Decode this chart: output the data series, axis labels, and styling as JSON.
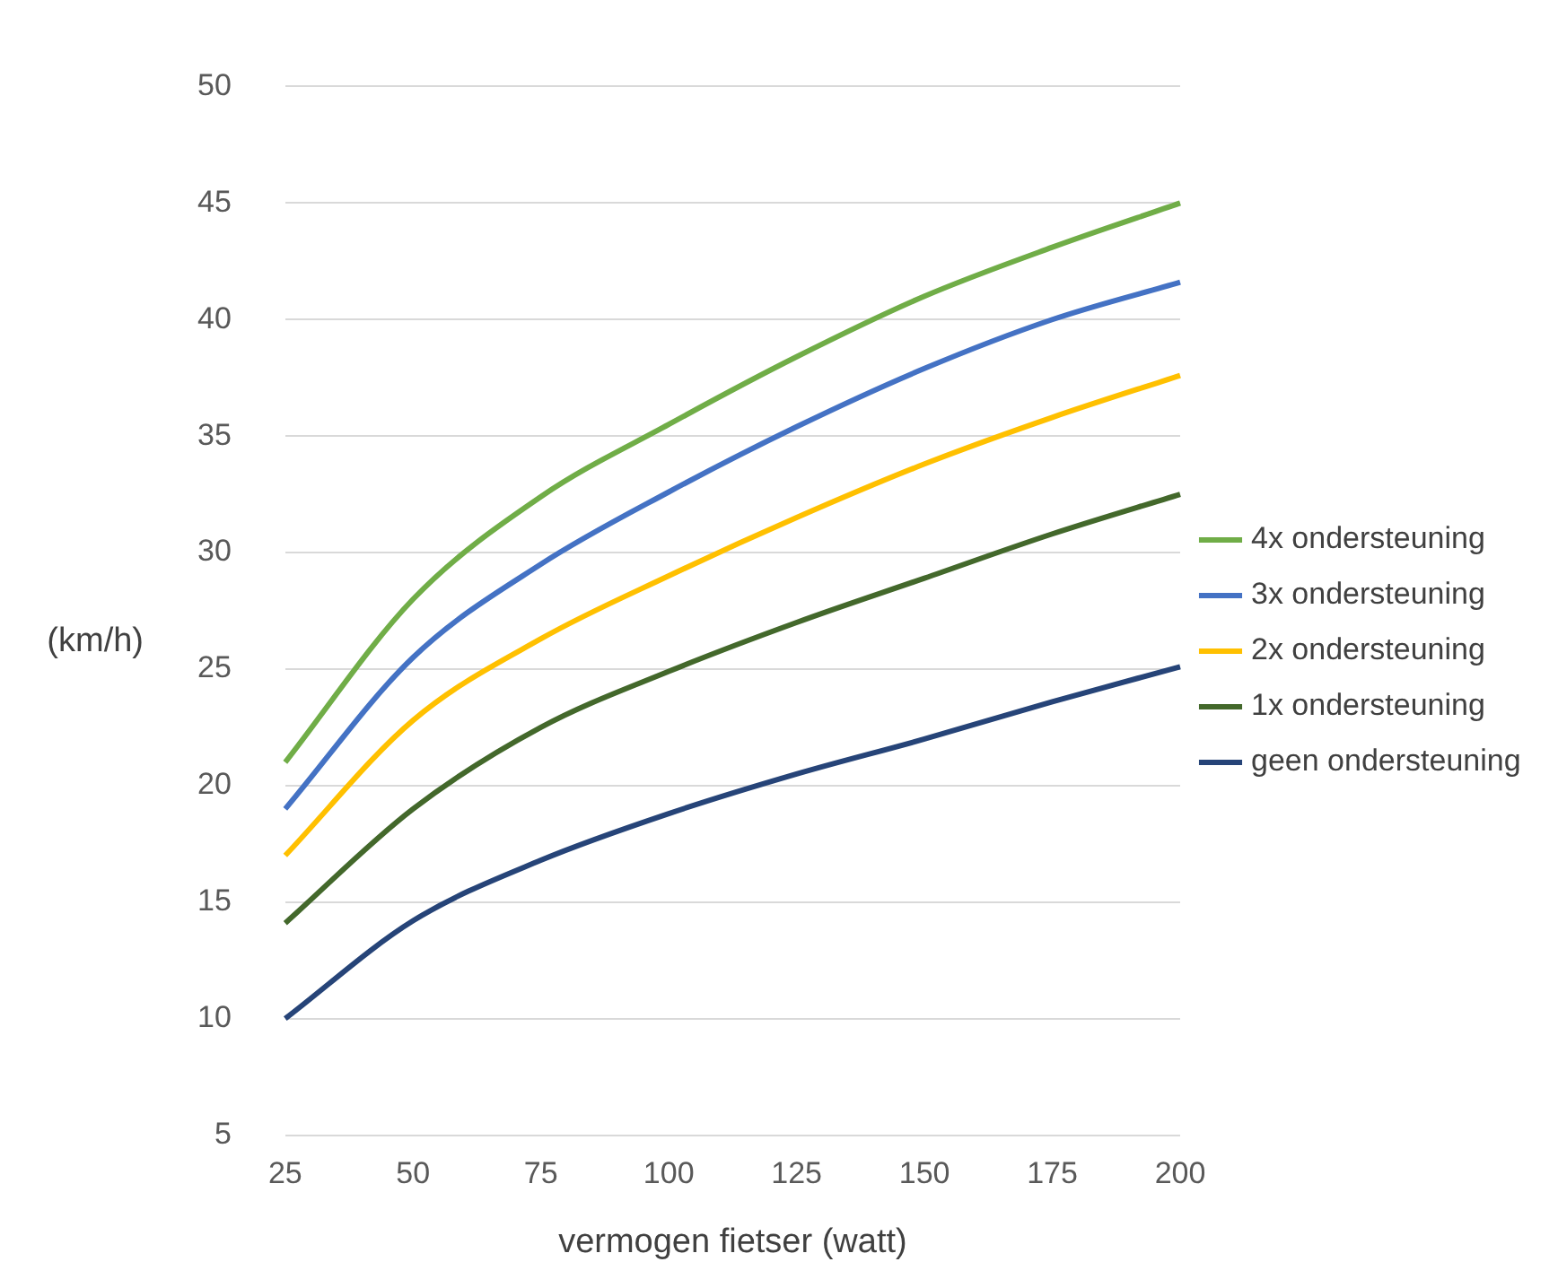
{
  "chart_data": {
    "type": "line",
    "xlabel": "vermogen fietser (watt)",
    "ylabel": "(km/h)",
    "categories": [
      "25",
      "50",
      "75",
      "100",
      "125",
      "150",
      "175",
      "200"
    ],
    "series": [
      {
        "name": "4x ondersteuning",
        "color": "#70ad47",
        "values": [
          21,
          28,
          32.4,
          35.5,
          38.4,
          41,
          43.1,
          45
        ]
      },
      {
        "name": "3x ondersteuning",
        "color": "#4472c4",
        "values": [
          19,
          25.5,
          29.5,
          32.6,
          35.4,
          37.9,
          40,
          41.6
        ]
      },
      {
        "name": "2x ondersteuning",
        "color": "#ffc000",
        "values": [
          17,
          22.8,
          26.3,
          29,
          31.5,
          33.8,
          35.8,
          37.6
        ]
      },
      {
        "name": "1x ondersteuning",
        "color": "#43682b",
        "values": [
          14.1,
          19,
          22.5,
          24.9,
          27,
          28.9,
          30.8,
          32.5
        ]
      },
      {
        "name": "geen ondersteuning",
        "color": "#264478",
        "values": [
          10,
          14.2,
          16.8,
          18.8,
          20.5,
          22,
          23.6,
          25.1
        ]
      }
    ],
    "ylim": [
      5,
      50
    ],
    "yticks": [
      5,
      10,
      15,
      20,
      25,
      30,
      35,
      40,
      45,
      50
    ],
    "grid": "y",
    "legend": "right",
    "marker": "none",
    "line_style": "solid"
  }
}
